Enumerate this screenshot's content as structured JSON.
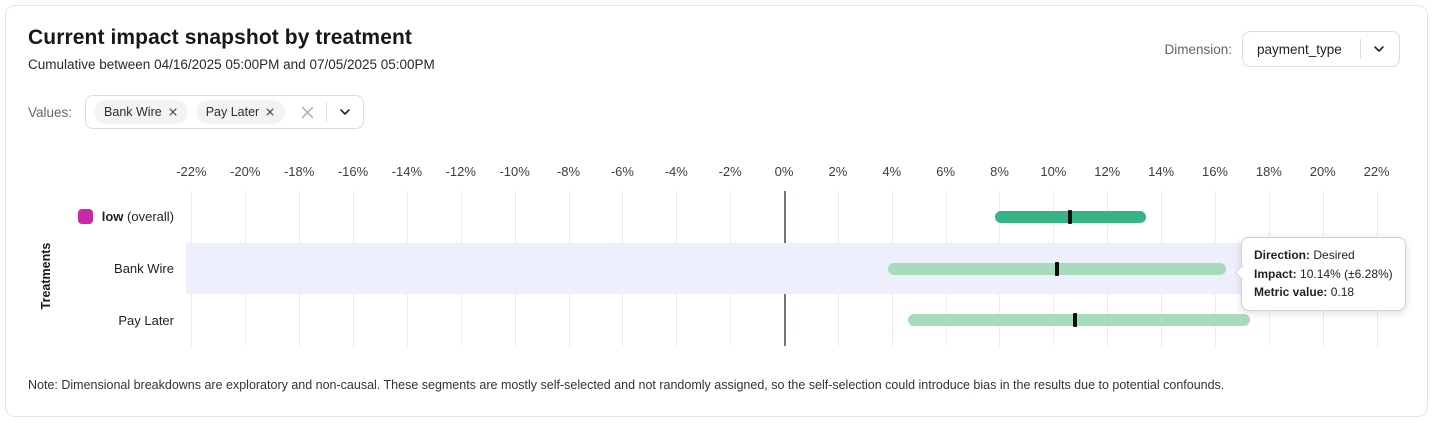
{
  "header": {
    "title": "Current impact snapshot by treatment",
    "subtitle": "Cumulative between 04/16/2025 05:00PM and 07/05/2025 05:00PM"
  },
  "dimension": {
    "label": "Dimension:",
    "value": "payment_type"
  },
  "values": {
    "label": "Values:",
    "chips": [
      "Bank Wire",
      "Pay Later"
    ]
  },
  "tooltip": {
    "direction_label": "Direction:",
    "direction_value": "Desired",
    "impact_label": "Impact:",
    "impact_value": "10.14% (±6.28%)",
    "metric_label": "Metric value:",
    "metric_value": "0.18"
  },
  "note": "Note: Dimensional breakdowns are exploratory and non-causal. These segments are mostly self-selected and not randomly assigned, so the self-selection could introduce bias in the results due to potential confounds.",
  "colors": {
    "overall_bar": "#35b583",
    "segment_bar": "#a8dbbc",
    "legend_magenta": "#cb28a5",
    "highlight_row": "#edeffc",
    "zero_line": "#70757d",
    "gridline": "#e9ebee",
    "impact_marker": "#0c0d0e"
  },
  "chart_data": {
    "type": "range_bar",
    "title": "Current impact snapshot by treatment",
    "ylabel": "Treatments",
    "xlim": [
      -22.2,
      22.2
    ],
    "grid": true,
    "zero_line": true,
    "ticks": [
      {
        "value": -22,
        "label": "-22%"
      },
      {
        "value": -20,
        "label": "-20%"
      },
      {
        "value": -18,
        "label": "-18%"
      },
      {
        "value": -16,
        "label": "-16%"
      },
      {
        "value": -14,
        "label": "-14%"
      },
      {
        "value": -12,
        "label": "-12%"
      },
      {
        "value": -10,
        "label": "-10%"
      },
      {
        "value": -8,
        "label": "-8%"
      },
      {
        "value": -6,
        "label": "-6%"
      },
      {
        "value": -4,
        "label": "-4%"
      },
      {
        "value": -2,
        "label": "-2%"
      },
      {
        "value": 0,
        "label": "0%"
      },
      {
        "value": 2,
        "label": "2%"
      },
      {
        "value": 4,
        "label": "4%"
      },
      {
        "value": 6,
        "label": "6%"
      },
      {
        "value": 8,
        "label": "8%"
      },
      {
        "value": 10,
        "label": "10%"
      },
      {
        "value": 12,
        "label": "12%"
      },
      {
        "value": 14,
        "label": "14%"
      },
      {
        "value": 16,
        "label": "16%"
      },
      {
        "value": 18,
        "label": "18%"
      },
      {
        "value": 20,
        "label": "20%"
      },
      {
        "value": 22,
        "label": "22%"
      }
    ],
    "series": [
      {
        "label": "low",
        "label_bold": true,
        "suffix": "(overall)",
        "legend_color": "#cb28a5",
        "bar_color": "#35b583",
        "impact_pct": 10.6,
        "ci_low_pct": 7.85,
        "ci_high_pct": 13.45,
        "highlighted": false
      },
      {
        "label": "Bank Wire",
        "label_bold": false,
        "suffix": "",
        "legend_color": "",
        "bar_color": "#a8dbbc",
        "impact_pct": 10.14,
        "ci_low_pct": 3.86,
        "ci_high_pct": 16.42,
        "highlighted": true
      },
      {
        "label": "Pay Later",
        "label_bold": false,
        "suffix": "",
        "legend_color": "",
        "bar_color": "#a8dbbc",
        "impact_pct": 10.8,
        "ci_low_pct": 4.6,
        "ci_high_pct": 17.3,
        "highlighted": false
      }
    ]
  }
}
